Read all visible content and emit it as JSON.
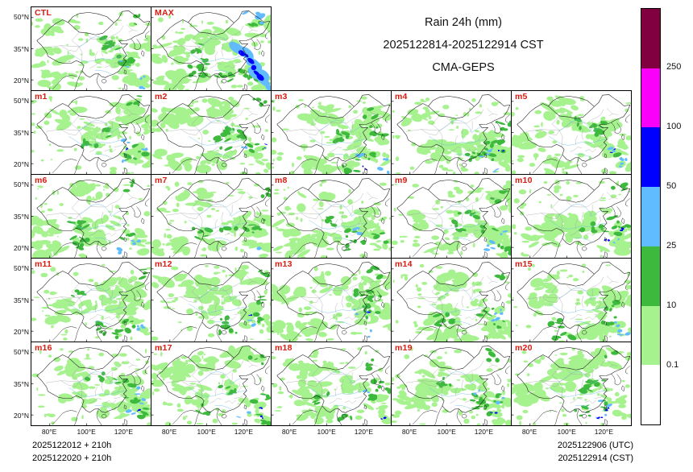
{
  "title": {
    "line1": "Rain 24h (mm)",
    "line2": "2025122814-2025122914 CST",
    "line3": "CMA-GEPS"
  },
  "axes": {
    "y_tick_labels": [
      "50°N",
      "35°N",
      "20°N"
    ],
    "x_tick_labels": [
      "80°E",
      "100°E",
      "120°E"
    ]
  },
  "panels": [
    {
      "label": "CTL",
      "row": 0,
      "col": 0
    },
    {
      "label": "MAX",
      "row": 0,
      "col": 1
    },
    {
      "label": "m1",
      "row": 1,
      "col": 0
    },
    {
      "label": "m2",
      "row": 1,
      "col": 1
    },
    {
      "label": "m3",
      "row": 1,
      "col": 2
    },
    {
      "label": "m4",
      "row": 1,
      "col": 3
    },
    {
      "label": "m5",
      "row": 1,
      "col": 4
    },
    {
      "label": "m6",
      "row": 2,
      "col": 0
    },
    {
      "label": "m7",
      "row": 2,
      "col": 1
    },
    {
      "label": "m8",
      "row": 2,
      "col": 2
    },
    {
      "label": "m9",
      "row": 2,
      "col": 3
    },
    {
      "label": "m10",
      "row": 2,
      "col": 4
    },
    {
      "label": "m11",
      "row": 3,
      "col": 0
    },
    {
      "label": "m12",
      "row": 3,
      "col": 1
    },
    {
      "label": "m13",
      "row": 3,
      "col": 2
    },
    {
      "label": "m14",
      "row": 3,
      "col": 3
    },
    {
      "label": "m15",
      "row": 3,
      "col": 4
    },
    {
      "label": "m16",
      "row": 4,
      "col": 0
    },
    {
      "label": "m17",
      "row": 4,
      "col": 1
    },
    {
      "label": "m18",
      "row": 4,
      "col": 2
    },
    {
      "label": "m19",
      "row": 4,
      "col": 3
    },
    {
      "label": "m20",
      "row": 4,
      "col": 4
    }
  ],
  "colorbar": {
    "tick_labels": [
      "250",
      "100",
      "50",
      "25",
      "10",
      "0.1"
    ],
    "segment_colors_top_to_bottom": [
      "#800040",
      "#fa00fa",
      "#0000fe",
      "#61bbff",
      "#3dba3d",
      "#a6f28f",
      "#ffffff"
    ]
  },
  "footer": {
    "init_line1": "2025122012 + 210h",
    "init_line2": "2025122020 + 210h",
    "valid_line1": "2025122906 (UTC)",
    "valid_line2": "2025122914 (CST)"
  },
  "chart_data": {
    "type": "heatmap",
    "subtype": "multi-panel ensemble precipitation maps",
    "title": "Rain 24h (mm)",
    "valid_period": "2025122814-2025122914 CST",
    "model": "CMA-GEPS",
    "panels": [
      "CTL",
      "MAX",
      "m1",
      "m2",
      "m3",
      "m4",
      "m5",
      "m6",
      "m7",
      "m8",
      "m9",
      "m10",
      "m11",
      "m12",
      "m13",
      "m14",
      "m15",
      "m16",
      "m17",
      "m18",
      "m19",
      "m20"
    ],
    "grid_layout": {
      "rows": 5,
      "cols": 5,
      "row1": [
        "CTL",
        "MAX",
        "(title area)"
      ]
    },
    "map_axes": {
      "x_ticks": [
        "80°E",
        "100°E",
        "120°E"
      ],
      "y_ticks": [
        "50°N",
        "35°N",
        "20°N"
      ]
    },
    "colorbar": {
      "units": "mm",
      "tick_values_top_to_bottom": [
        250,
        100,
        50,
        25,
        10,
        0.1
      ],
      "bins_top_to_bottom": [
        ">250",
        "100-250",
        "50-100",
        "25-50",
        "10-25",
        "0.1-10",
        "<0.1"
      ],
      "colors_top_to_bottom": [
        "#800040",
        "#fa00fa",
        "#0000fe",
        "#61bbff",
        "#3dba3d",
        "#a6f28f",
        "#ffffff"
      ],
      "legend_position": "right"
    },
    "init_times": [
      "2025122012 + 210h",
      "2025122020 + 210h"
    ],
    "valid_times": [
      "2025122906 (UTC)",
      "2025122914 (CST)"
    ]
  }
}
